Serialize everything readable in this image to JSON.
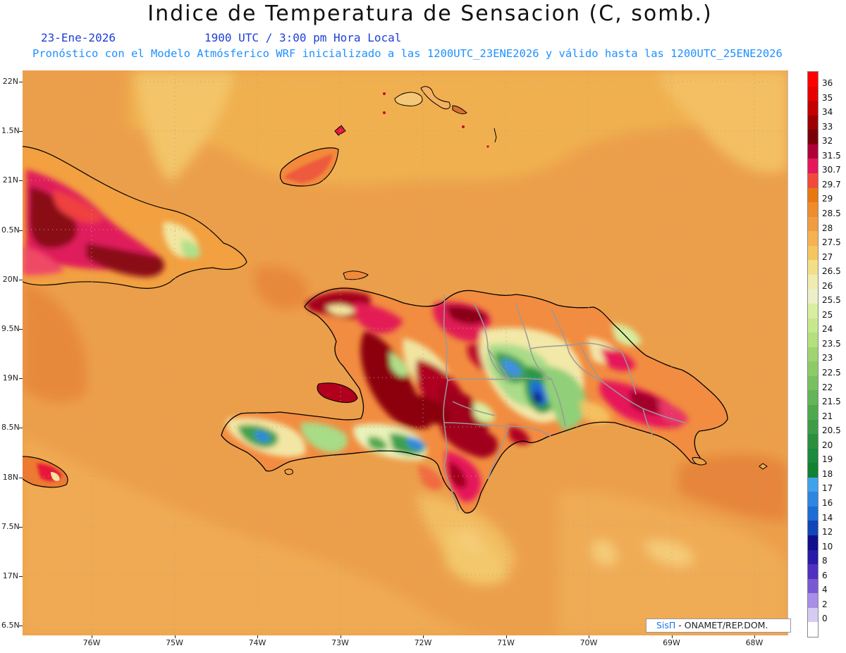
{
  "header": {
    "title": "Indice de Temperatura de Sensacion (C, somb.)",
    "date": "23-Ene-2026",
    "time": "1900 UTC / 3:00 pm Hora Local",
    "description": "Pronóstico con el Modelo Atmósferico WRF inicializado a las 1200UTC_23ENE2026 y válido hasta las  1200UTC_25ENE2026"
  },
  "map": {
    "lat_labels": [
      "22N",
      "1.5N",
      "21N",
      "0.5N",
      "20N",
      "9.5N",
      "19N",
      "8.5N",
      "18N",
      "7.5N",
      "17N",
      "6.5N"
    ],
    "lon_labels": [
      "76W",
      "75W",
      "74W",
      "73W",
      "72W",
      "71W",
      "70W",
      "69W",
      "68W"
    ],
    "colors": {
      "sea": "#ec9f4a",
      "sea_light": "#f1b45c",
      "coastline": "#000000",
      "province_borders": "#9a9a9a",
      "gridline": "#b0a48a"
    }
  },
  "colorbar": {
    "labels": [
      "36",
      "35",
      "34",
      "33",
      "32",
      "31.5",
      "30.7",
      "29.7",
      "29",
      "28.5",
      "28",
      "27.5",
      "27",
      "26.5",
      "26",
      "25.5",
      "25",
      "24",
      "23.5",
      "23",
      "22.5",
      "22",
      "21.5",
      "21",
      "20.5",
      "20",
      "19",
      "18",
      "17",
      "16",
      "14",
      "12",
      "10",
      "8",
      "6",
      "4",
      "2",
      "0"
    ],
    "colors": [
      "#ff0000",
      "#e80000",
      "#c40000",
      "#9c0000",
      "#7a0008",
      "#b0003a",
      "#e6175a",
      "#f24a3a",
      "#e87810",
      "#ee8c2e",
      "#f09c42",
      "#f5b24e",
      "#f5c660",
      "#f3df88",
      "#f0ecb0",
      "#ecf0c8",
      "#d9ee9e",
      "#c8e88e",
      "#b4e07e",
      "#a0d472",
      "#8ccb68",
      "#78c060",
      "#64b458",
      "#50a84e",
      "#3e9c48",
      "#2a9040",
      "#1a8a3c",
      "#108232",
      "#3fa2ec",
      "#2e86e0",
      "#1e6cd6",
      "#1046b8",
      "#10108a",
      "#2a1aa8",
      "#5030c0",
      "#7a5ad4",
      "#a88ee6",
      "#d6ccf2"
    ]
  },
  "credit": {
    "brand": "SisΠ",
    "text": " - ONAMET/REP.DOM."
  }
}
